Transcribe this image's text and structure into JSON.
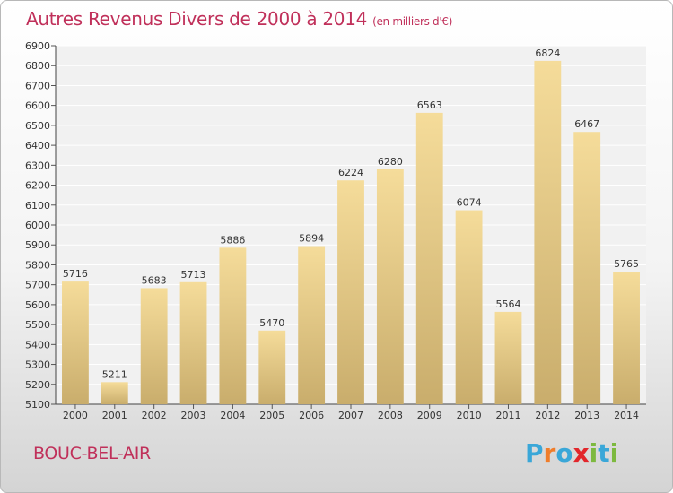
{
  "chart_data": {
    "type": "bar",
    "title": "Autres Revenus Divers de 2000 à 2014",
    "subtitle": "(en milliers d'€)",
    "categories": [
      "2000",
      "2001",
      "2002",
      "2003",
      "2004",
      "2005",
      "2006",
      "2007",
      "2008",
      "2009",
      "2010",
      "2011",
      "2012",
      "2013",
      "2014"
    ],
    "values": [
      5716,
      5211,
      5683,
      5713,
      5886,
      5470,
      5894,
      6224,
      6280,
      6563,
      6074,
      5564,
      6824,
      6467,
      5765
    ],
    "ylim": [
      5100,
      6900
    ],
    "ytick_step": 100,
    "grid": true,
    "legend": "none"
  },
  "footer": {
    "city": "BOUC-BEL-AIR",
    "logo_text": "Proxiti"
  },
  "colors": {
    "title": "#c0305a",
    "bar_light": "#f5dc9a",
    "bar_dark": "#c9ad6c",
    "logo_letters": [
      "#3aa7d8",
      "#f07d2a",
      "#3aa7d8",
      "#e2262b",
      "#7db93f",
      "#3aa7d8",
      "#7db93f"
    ]
  }
}
